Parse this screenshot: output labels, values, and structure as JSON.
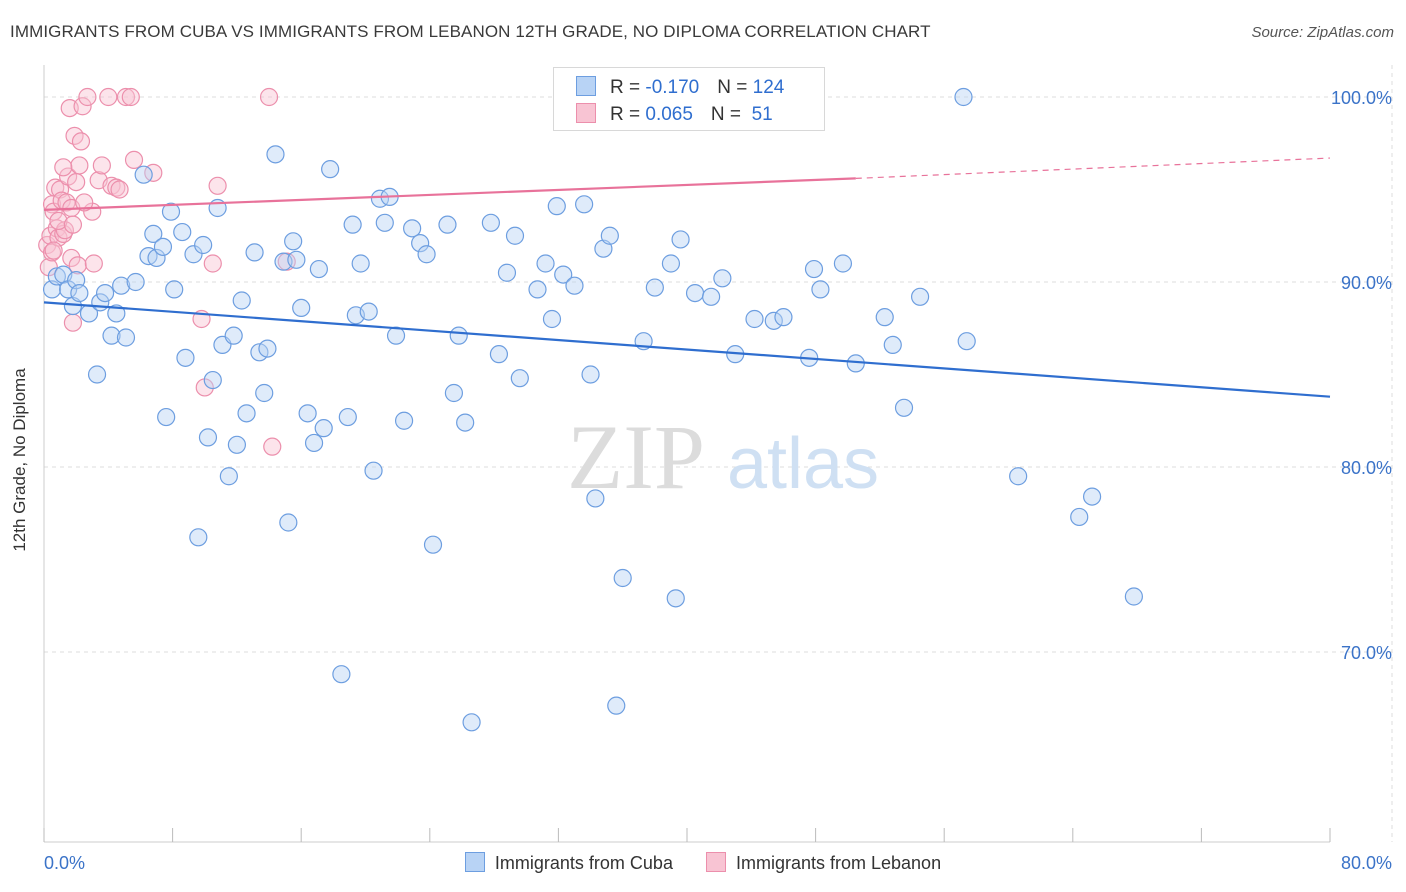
{
  "title": "IMMIGRANTS FROM CUBA VS IMMIGRANTS FROM LEBANON 12TH GRADE, NO DIPLOMA CORRELATION CHART",
  "source": "Source: ZipAtlas.com",
  "watermark": {
    "zip": "ZIP",
    "atlas": "atlas"
  },
  "legend_stats": [
    {
      "r_label": "R = ",
      "r_value": "-0.170",
      "n_label": "N = ",
      "n_value": "124"
    },
    {
      "r_label": "R = ",
      "r_value": "0.065",
      "n_label": "N = ",
      "n_value": " 51"
    }
  ],
  "bottom_legend": [
    "Immigrants from Cuba",
    "Immigrants from Lebanon"
  ],
  "colors": {
    "cuba_fill": "#b8d3f5",
    "cuba_stroke": "#6d9ee0",
    "cuba_line": "#2f6ecf",
    "lebanon_fill": "#f8c4d3",
    "lebanon_stroke": "#ec8fac",
    "lebanon_line": "#e8729a",
    "axis_text": "#3b73c8",
    "grid": "#dddddd"
  },
  "chart_data": {
    "type": "scatter",
    "title": "IMMIGRANTS FROM CUBA VS IMMIGRANTS FROM LEBANON 12TH GRADE, NO DIPLOMA CORRELATION CHART",
    "xlabel": "",
    "ylabel": "12th Grade, No Diploma",
    "xlim": [
      0,
      80
    ],
    "ylim": [
      60,
      101.5
    ],
    "x_tick_labels": [
      "0.0%",
      "80.0%"
    ],
    "y_ticks": [
      70,
      80,
      90,
      100
    ],
    "y_tick_labels": [
      "70.0%",
      "80.0%",
      "90.0%",
      "100.0%"
    ],
    "grid": true,
    "legend_placement": "top-center",
    "series": [
      {
        "name": "Immigrants from Cuba",
        "r": -0.17,
        "n": 124,
        "trend": {
          "x": [
            0,
            80
          ],
          "y": [
            88.9,
            83.8
          ]
        },
        "points": [
          [
            0.5,
            89.6
          ],
          [
            0.8,
            90.3
          ],
          [
            1.2,
            90.4
          ],
          [
            1.5,
            89.6
          ],
          [
            1.8,
            88.7
          ],
          [
            2.0,
            90.1
          ],
          [
            2.2,
            89.4
          ],
          [
            2.8,
            88.3
          ],
          [
            3.3,
            85.0
          ],
          [
            3.5,
            88.9
          ],
          [
            3.8,
            89.4
          ],
          [
            4.2,
            87.1
          ],
          [
            4.5,
            88.3
          ],
          [
            4.8,
            89.8
          ],
          [
            5.1,
            87.0
          ],
          [
            5.7,
            90.0
          ],
          [
            6.2,
            95.8
          ],
          [
            6.5,
            91.4
          ],
          [
            6.8,
            92.6
          ],
          [
            7.0,
            91.3
          ],
          [
            7.4,
            91.9
          ],
          [
            7.6,
            82.7
          ],
          [
            7.9,
            93.8
          ],
          [
            8.1,
            89.6
          ],
          [
            8.6,
            92.7
          ],
          [
            8.8,
            85.9
          ],
          [
            9.3,
            91.5
          ],
          [
            9.6,
            76.2
          ],
          [
            9.9,
            92.0
          ],
          [
            10.2,
            81.6
          ],
          [
            10.5,
            84.7
          ],
          [
            10.8,
            94.0
          ],
          [
            11.1,
            86.6
          ],
          [
            11.5,
            79.5
          ],
          [
            11.8,
            87.1
          ],
          [
            12.0,
            81.2
          ],
          [
            12.3,
            89.0
          ],
          [
            12.6,
            82.9
          ],
          [
            13.1,
            91.6
          ],
          [
            13.4,
            86.2
          ],
          [
            13.7,
            84.0
          ],
          [
            13.9,
            86.4
          ],
          [
            14.4,
            96.9
          ],
          [
            14.9,
            91.1
          ],
          [
            15.2,
            77.0
          ],
          [
            15.5,
            92.2
          ],
          [
            15.7,
            91.2
          ],
          [
            16.0,
            88.6
          ],
          [
            16.4,
            82.9
          ],
          [
            16.8,
            81.3
          ],
          [
            17.1,
            90.7
          ],
          [
            17.4,
            82.1
          ],
          [
            17.8,
            96.1
          ],
          [
            18.5,
            68.8
          ],
          [
            18.9,
            82.7
          ],
          [
            19.2,
            93.1
          ],
          [
            19.4,
            88.2
          ],
          [
            19.7,
            91.0
          ],
          [
            20.2,
            88.4
          ],
          [
            20.5,
            79.8
          ],
          [
            20.9,
            94.5
          ],
          [
            21.2,
            93.2
          ],
          [
            21.5,
            94.6
          ],
          [
            21.9,
            87.1
          ],
          [
            22.4,
            82.5
          ],
          [
            22.9,
            92.9
          ],
          [
            23.4,
            92.1
          ],
          [
            23.8,
            91.5
          ],
          [
            24.2,
            75.8
          ],
          [
            25.1,
            93.1
          ],
          [
            25.5,
            84.0
          ],
          [
            25.8,
            87.1
          ],
          [
            26.2,
            82.4
          ],
          [
            26.6,
            66.2
          ],
          [
            27.8,
            93.2
          ],
          [
            28.3,
            86.1
          ],
          [
            28.8,
            90.5
          ],
          [
            29.3,
            92.5
          ],
          [
            29.6,
            84.8
          ],
          [
            30.7,
            89.6
          ],
          [
            31.2,
            91.0
          ],
          [
            31.6,
            88.0
          ],
          [
            31.9,
            94.1
          ],
          [
            32.3,
            90.4
          ],
          [
            33.0,
            89.8
          ],
          [
            33.6,
            94.2
          ],
          [
            34.0,
            85.0
          ],
          [
            34.3,
            78.3
          ],
          [
            34.8,
            91.8
          ],
          [
            35.2,
            92.5
          ],
          [
            35.6,
            67.1
          ],
          [
            36.0,
            74.0
          ],
          [
            37.3,
            86.8
          ],
          [
            38.0,
            89.7
          ],
          [
            39.0,
            91.0
          ],
          [
            39.3,
            72.9
          ],
          [
            39.6,
            92.3
          ],
          [
            40.5,
            89.4
          ],
          [
            41.5,
            89.2
          ],
          [
            42.2,
            90.2
          ],
          [
            43.0,
            86.1
          ],
          [
            44.2,
            88.0
          ],
          [
            45.4,
            87.9
          ],
          [
            46.0,
            88.1
          ],
          [
            47.6,
            85.9
          ],
          [
            47.9,
            90.7
          ],
          [
            48.3,
            89.6
          ],
          [
            49.7,
            91.0
          ],
          [
            50.5,
            85.6
          ],
          [
            52.3,
            88.1
          ],
          [
            52.8,
            86.6
          ],
          [
            53.5,
            83.2
          ],
          [
            54.5,
            89.2
          ],
          [
            57.2,
            100.0
          ],
          [
            57.4,
            86.8
          ],
          [
            60.6,
            79.5
          ],
          [
            64.4,
            77.3
          ],
          [
            65.2,
            78.4
          ],
          [
            67.8,
            73.0
          ]
        ]
      },
      {
        "name": "Immigrants from Lebanon",
        "r": 0.065,
        "n": 51,
        "trend": {
          "x": [
            0,
            50.5
          ],
          "y": [
            93.9,
            95.6
          ],
          "dashed_to": {
            "x": 80,
            "y": 96.7
          }
        },
        "points": [
          [
            0.2,
            92.0
          ],
          [
            0.3,
            90.8
          ],
          [
            0.4,
            92.5
          ],
          [
            0.5,
            94.2
          ],
          [
            0.5,
            91.6
          ],
          [
            0.6,
            93.8
          ],
          [
            0.7,
            95.1
          ],
          [
            0.8,
            92.9
          ],
          [
            0.9,
            92.4
          ],
          [
            1.0,
            95.0
          ],
          [
            1.1,
            94.4
          ],
          [
            1.2,
            92.6
          ],
          [
            1.3,
            92.8
          ],
          [
            1.4,
            94.3
          ],
          [
            1.5,
            95.7
          ],
          [
            1.6,
            99.4
          ],
          [
            1.7,
            94.0
          ],
          [
            1.7,
            91.3
          ],
          [
            1.8,
            87.8
          ],
          [
            1.9,
            97.9
          ],
          [
            2.0,
            95.4
          ],
          [
            2.1,
            90.9
          ],
          [
            2.2,
            96.3
          ],
          [
            2.3,
            97.6
          ],
          [
            2.4,
            99.5
          ],
          [
            2.7,
            100.0
          ],
          [
            3.0,
            93.8
          ],
          [
            3.1,
            91.0
          ],
          [
            3.4,
            95.5
          ],
          [
            3.6,
            96.3
          ],
          [
            4.0,
            100.0
          ],
          [
            4.2,
            95.2
          ],
          [
            4.5,
            95.1
          ],
          [
            4.7,
            95.0
          ],
          [
            5.1,
            100.0
          ],
          [
            5.4,
            100.0
          ],
          [
            5.6,
            96.6
          ],
          [
            6.8,
            95.9
          ],
          [
            9.8,
            88.0
          ],
          [
            10.0,
            84.3
          ],
          [
            10.5,
            91.0
          ],
          [
            10.8,
            95.2
          ],
          [
            14.2,
            81.1
          ],
          [
            15.1,
            91.1
          ],
          [
            14.0,
            100.0
          ],
          [
            42.7,
            100.0
          ],
          [
            0.9,
            93.3
          ],
          [
            1.2,
            96.2
          ],
          [
            0.6,
            91.7
          ],
          [
            2.5,
            94.3
          ],
          [
            1.8,
            93.1
          ]
        ]
      }
    ]
  }
}
